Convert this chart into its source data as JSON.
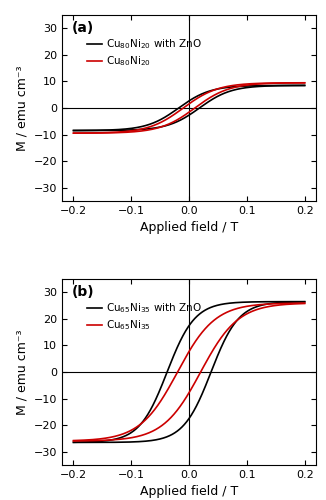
{
  "panel_a": {
    "label": "(a)",
    "ylim": [
      -35,
      35
    ],
    "yticks": [
      -30,
      -20,
      -10,
      0,
      10,
      20,
      30
    ],
    "xlim": [
      -0.22,
      0.22
    ],
    "xticks": [
      -0.2,
      -0.1,
      0.0,
      0.1,
      0.2
    ],
    "ylabel": "M / emu cm⁻³",
    "xlabel": "Applied field / T",
    "ms_zno": 8.5,
    "ms_plain": 9.5,
    "Hc_zno": 0.018,
    "Hc_plain": 0.01,
    "alpha_zno": 0.055,
    "alpha_plain": 0.06,
    "legend1": "Cu$_{80}$Ni$_{20}$ with ZnO",
    "legend2": "Cu$_{80}$Ni$_{20}$",
    "color_zno": "#000000",
    "color_plain": "#cc0000"
  },
  "panel_b": {
    "label": "(b)",
    "ylim": [
      -35,
      35
    ],
    "yticks": [
      -30,
      -20,
      -10,
      0,
      10,
      20,
      30
    ],
    "xlim": [
      -0.22,
      0.22
    ],
    "xticks": [
      -0.2,
      -0.1,
      0.0,
      0.1,
      0.2
    ],
    "ylabel": "M / emu cm⁻³",
    "xlabel": "Applied field / T",
    "ms_zno": 26.5,
    "ms_plain": 26.0,
    "Hc_zno": 0.038,
    "Hc_plain": 0.02,
    "alpha_zno": 0.048,
    "alpha_plain": 0.065,
    "legend1": "Cu$_{65}$Ni$_{35}$ with ZnO",
    "legend2": "Cu$_{65}$Ni$_{35}$",
    "color_zno": "#000000",
    "color_plain": "#cc0000"
  }
}
